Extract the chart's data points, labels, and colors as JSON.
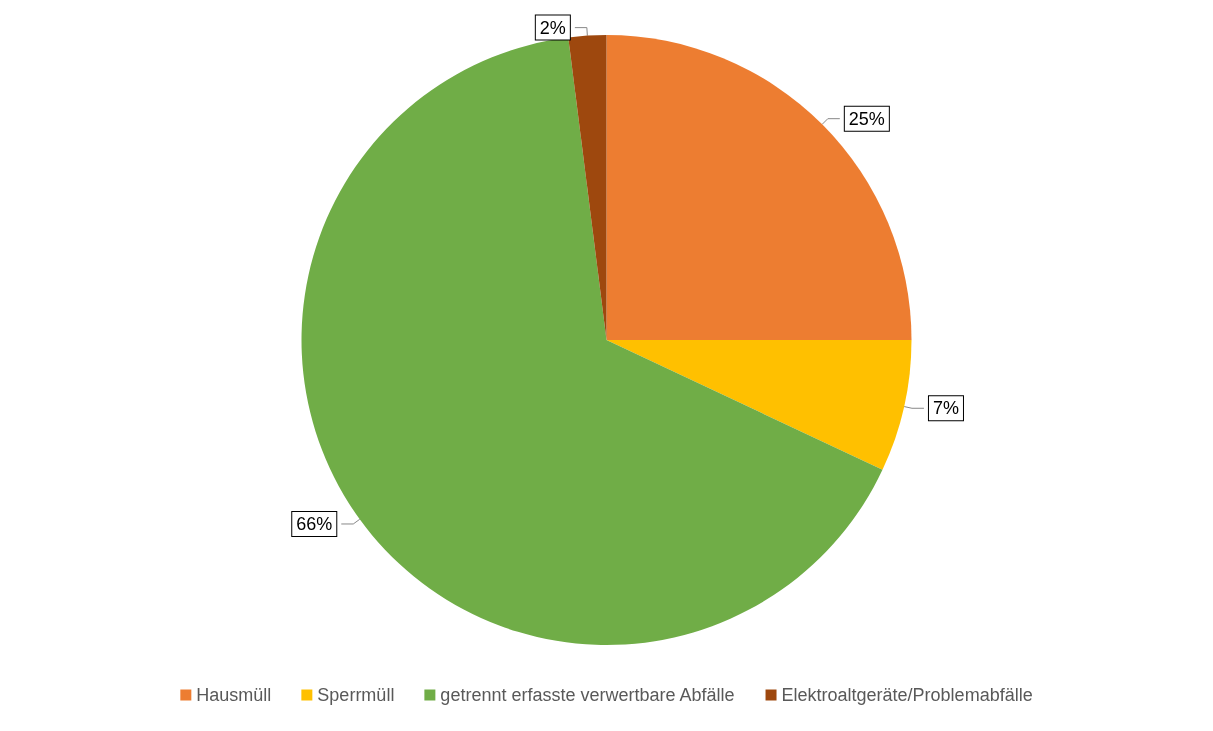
{
  "chart_data": {
    "type": "pie",
    "categories": [
      "Hausmüll",
      "Sperrmüll",
      "getrennt erfasste verwertbare Abfälle",
      "Elektroaltgeräte/Problemabfälle"
    ],
    "values": [
      25,
      7,
      66,
      2
    ],
    "colors": [
      "#ed7d31",
      "#ffc000",
      "#70ad47",
      "#9e480e"
    ],
    "value_labels": [
      "25%",
      "7%",
      "66%",
      "2%"
    ],
    "legend": "bottom"
  }
}
